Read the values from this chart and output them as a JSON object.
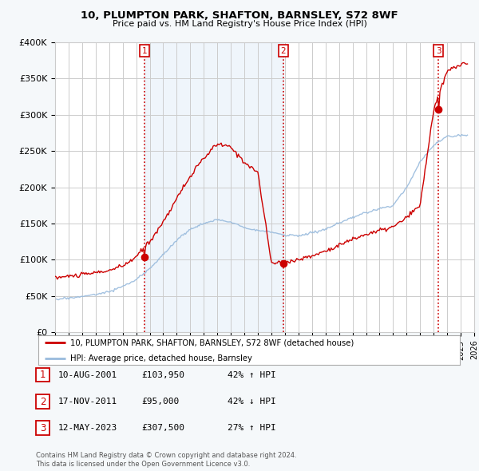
{
  "title": "10, PLUMPTON PARK, SHAFTON, BARNSLEY, S72 8WF",
  "subtitle": "Price paid vs. HM Land Registry's House Price Index (HPI)",
  "xlim": [
    1995,
    2026
  ],
  "ylim": [
    0,
    400000
  ],
  "yticks": [
    0,
    50000,
    100000,
    150000,
    200000,
    250000,
    300000,
    350000,
    400000
  ],
  "ytick_labels": [
    "£0",
    "£50K",
    "£100K",
    "£150K",
    "£200K",
    "£250K",
    "£300K",
    "£350K",
    "£400K"
  ],
  "transactions": [
    {
      "year": 2001.61,
      "price": 103950,
      "label": "1"
    },
    {
      "year": 2011.89,
      "price": 95000,
      "label": "2"
    },
    {
      "year": 2023.36,
      "price": 307500,
      "label": "3"
    }
  ],
  "vline_color": "#cc0000",
  "red_line_color": "#cc0000",
  "blue_line_color": "#99bbdd",
  "shade_color": "#ddeeff",
  "legend_entries": [
    "10, PLUMPTON PARK, SHAFTON, BARNSLEY, S72 8WF (detached house)",
    "HPI: Average price, detached house, Barnsley"
  ],
  "table_rows": [
    {
      "num": "1",
      "date": "10-AUG-2001",
      "price": "£103,950",
      "hpi": "42% ↑ HPI"
    },
    {
      "num": "2",
      "date": "17-NOV-2011",
      "price": "£95,000",
      "hpi": "42% ↓ HPI"
    },
    {
      "num": "3",
      "date": "12-MAY-2023",
      "price": "£307,500",
      "hpi": "27% ↑ HPI"
    }
  ],
  "footnote": "Contains HM Land Registry data © Crown copyright and database right 2024.\nThis data is licensed under the Open Government Licence v3.0.",
  "bg_color": "#f5f8fa",
  "plot_bg_color": "#ffffff",
  "grid_color": "#cccccc",
  "legend_border_color": "#aaaaaa"
}
